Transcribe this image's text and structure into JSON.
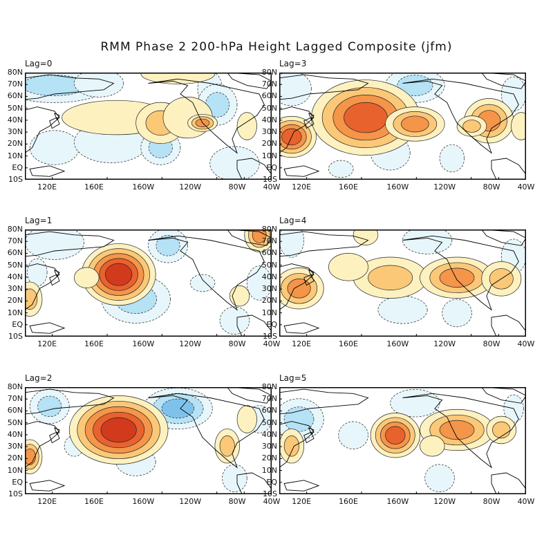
{
  "title": "RMM Phase 2 200-hPa Height Lagged Composite (jfm)",
  "lat_labels": [
    "80N",
    "70N",
    "60N",
    "50N",
    "40N",
    "30N",
    "20N",
    "10N",
    "EQ",
    "10S"
  ],
  "lon_labels": [
    "120E",
    "160E",
    "160W",
    "120W",
    "80W",
    "40W"
  ],
  "colors": {
    "pos": [
      "#fef1c0",
      "#fbc878",
      "#f4954a",
      "#e8622e",
      "#d23a1d"
    ],
    "neg": [
      "#e7f6fb",
      "#b5e2f5",
      "#7ec2ec",
      "#5b9ee0",
      "#3a78c8"
    ],
    "land": "#000000"
  },
  "panels": [
    {
      "label": "Lag=0",
      "col": 0,
      "row": 0,
      "pos": [
        [
          0.37,
          0.42,
          0.22,
          0.1,
          1
        ],
        [
          0.55,
          0.47,
          0.1,
          0.12,
          2
        ],
        [
          0.66,
          0.42,
          0.1,
          0.12,
          1
        ],
        [
          0.9,
          0.5,
          0.04,
          0.08,
          1
        ],
        [
          0.62,
          0.01,
          0.15,
          0.06,
          1
        ],
        [
          0.72,
          0.47,
          0.06,
          0.05,
          3
        ]
      ],
      "neg": [
        [
          0.12,
          0.12,
          0.22,
          0.1,
          2
        ],
        [
          0.3,
          0.1,
          0.1,
          0.08,
          1
        ],
        [
          0.75,
          0.15,
          0.05,
          0.1,
          1
        ],
        [
          0.12,
          0.7,
          0.1,
          0.1,
          1
        ],
        [
          0.35,
          0.65,
          0.15,
          0.12,
          1
        ],
        [
          0.55,
          0.7,
          0.08,
          0.1,
          2
        ],
        [
          0.85,
          0.85,
          0.1,
          0.1,
          1
        ],
        [
          0.78,
          0.3,
          0.08,
          0.12,
          2
        ]
      ]
    },
    {
      "label": "Lag=3",
      "col": 1,
      "row": 0,
      "pos": [
        [
          0.05,
          0.6,
          0.1,
          0.12,
          4
        ],
        [
          0.35,
          0.42,
          0.22,
          0.22,
          4
        ],
        [
          0.55,
          0.48,
          0.12,
          0.1,
          3
        ],
        [
          0.85,
          0.45,
          0.1,
          0.13,
          3
        ],
        [
          0.78,
          0.5,
          0.06,
          0.06,
          2
        ],
        [
          0.98,
          0.5,
          0.04,
          0.08,
          1
        ]
      ],
      "neg": [
        [
          0.55,
          0.12,
          0.12,
          0.1,
          2
        ],
        [
          0.95,
          0.2,
          0.05,
          0.1,
          1
        ],
        [
          0.05,
          0.15,
          0.08,
          0.1,
          1
        ],
        [
          0.45,
          0.75,
          0.08,
          0.1,
          1
        ],
        [
          0.7,
          0.8,
          0.05,
          0.08,
          1
        ],
        [
          0.25,
          0.9,
          0.05,
          0.05,
          1
        ]
      ]
    },
    {
      "label": "Lag=1",
      "col": 0,
      "row": 1,
      "pos": [
        [
          0.38,
          0.42,
          0.15,
          0.18,
          5
        ],
        [
          0.02,
          0.65,
          0.05,
          0.1,
          2
        ],
        [
          0.95,
          0.05,
          0.06,
          0.1,
          3
        ],
        [
          0.87,
          0.62,
          0.04,
          0.06,
          1
        ],
        [
          0.25,
          0.45,
          0.05,
          0.06,
          1
        ]
      ],
      "neg": [
        [
          0.12,
          0.12,
          0.12,
          0.1,
          1
        ],
        [
          0.45,
          0.65,
          0.14,
          0.14,
          2
        ],
        [
          0.58,
          0.15,
          0.08,
          0.1,
          2
        ],
        [
          0.95,
          0.5,
          0.05,
          0.1,
          1
        ],
        [
          0.05,
          0.4,
          0.04,
          0.08,
          1
        ],
        [
          0.72,
          0.5,
          0.05,
          0.05,
          1
        ],
        [
          0.85,
          0.85,
          0.06,
          0.08,
          1
        ]
      ]
    },
    {
      "label": "Lag=4",
      "col": 1,
      "row": 1,
      "pos": [
        [
          0.08,
          0.55,
          0.1,
          0.12,
          3
        ],
        [
          0.45,
          0.45,
          0.15,
          0.12,
          2
        ],
        [
          0.72,
          0.45,
          0.15,
          0.12,
          3
        ],
        [
          0.9,
          0.46,
          0.08,
          0.1,
          2
        ],
        [
          0.28,
          0.35,
          0.08,
          0.08,
          1
        ],
        [
          0.35,
          0.05,
          0.05,
          0.06,
          1
        ]
      ],
      "neg": [
        [
          0.05,
          0.1,
          0.05,
          0.1,
          1
        ],
        [
          0.6,
          0.1,
          0.1,
          0.08,
          1
        ],
        [
          0.95,
          0.25,
          0.05,
          0.1,
          1
        ],
        [
          0.5,
          0.75,
          0.1,
          0.08,
          1
        ],
        [
          0.72,
          0.78,
          0.06,
          0.08,
          1
        ]
      ]
    },
    {
      "label": "Lag=2",
      "col": 0,
      "row": 2,
      "pos": [
        [
          0.38,
          0.4,
          0.2,
          0.2,
          5
        ],
        [
          0.02,
          0.65,
          0.05,
          0.1,
          3
        ],
        [
          0.82,
          0.55,
          0.05,
          0.1,
          2
        ],
        [
          0.9,
          0.3,
          0.04,
          0.08,
          1
        ]
      ],
      "neg": [
        [
          0.62,
          0.2,
          0.14,
          0.12,
          3
        ],
        [
          0.1,
          0.18,
          0.08,
          0.1,
          2
        ],
        [
          0.45,
          0.7,
          0.08,
          0.08,
          1
        ],
        [
          0.95,
          0.3,
          0.05,
          0.08,
          1
        ],
        [
          0.2,
          0.55,
          0.04,
          0.06,
          1
        ],
        [
          0.85,
          0.85,
          0.05,
          0.08,
          1
        ]
      ]
    },
    {
      "label": "Lag=5",
      "col": 1,
      "row": 2,
      "pos": [
        [
          0.47,
          0.45,
          0.1,
          0.13,
          4
        ],
        [
          0.72,
          0.4,
          0.15,
          0.12,
          3
        ],
        [
          0.05,
          0.55,
          0.05,
          0.1,
          2
        ],
        [
          0.9,
          0.4,
          0.06,
          0.08,
          2
        ],
        [
          0.62,
          0.55,
          0.05,
          0.06,
          1
        ]
      ],
      "neg": [
        [
          0.08,
          0.3,
          0.1,
          0.12,
          2
        ],
        [
          0.3,
          0.45,
          0.06,
          0.08,
          1
        ],
        [
          0.55,
          0.15,
          0.1,
          0.08,
          1
        ],
        [
          0.95,
          0.2,
          0.04,
          0.08,
          1
        ],
        [
          0.65,
          0.85,
          0.06,
          0.08,
          1
        ]
      ]
    }
  ]
}
